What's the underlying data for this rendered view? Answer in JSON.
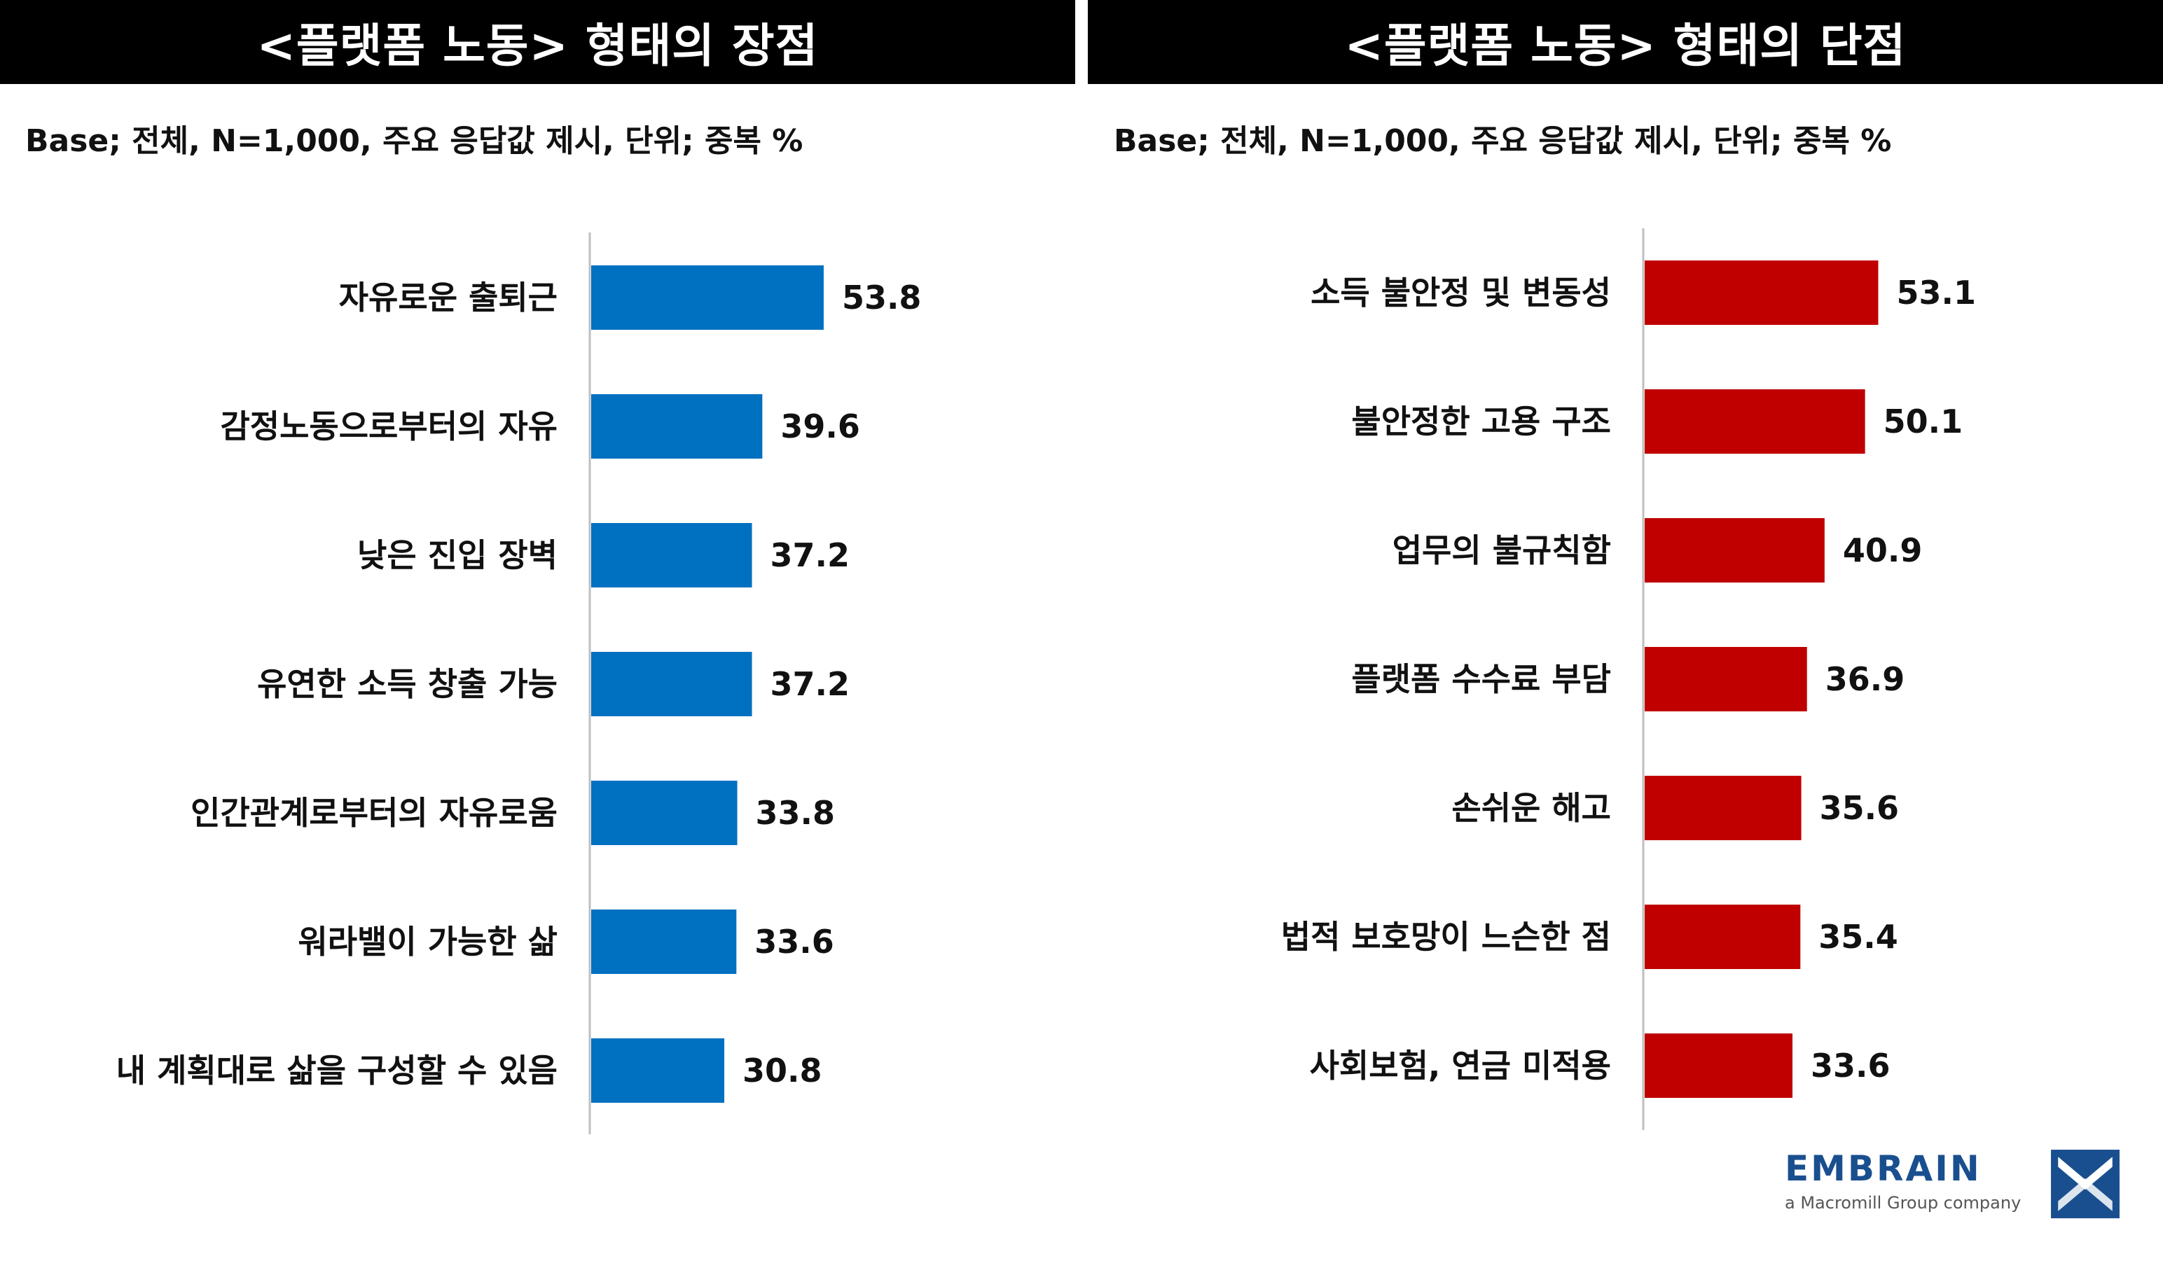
{
  "panels": [
    {
      "header": "<플랫폼 노동> 형태의 장점",
      "base_note": "Base; 전체, N=1,000, 주요 응답값 제시, 단위; 중복 %",
      "color": "#0070C0"
    },
    {
      "header": "<플랫폼 노동> 형태의 단점",
      "base_note": "Base; 전체, N=1,000, 주요 응답값 제시, 단위; 중복 %",
      "color": "#C00000"
    }
  ],
  "chart_data": [
    {
      "type": "bar",
      "orientation": "horizontal",
      "title": "<플랫폼 노동> 형태의 장점",
      "categories": [
        "자유로운 출퇴근",
        "감정노동으로부터의 자유",
        "낮은 진입 장벽",
        "유연한 소득 창출 가능",
        "인간관계로부터의 자유로움",
        "워라밸이 가능한 삶",
        "내 계획대로 삶을 구성할 수 있음"
      ],
      "values": [
        53.8,
        39.6,
        37.2,
        37.2,
        33.8,
        33.6,
        30.8
      ],
      "value_labels": [
        "53.8",
        "39.6",
        "37.2",
        "37.2",
        "33.8",
        "33.6",
        "30.8"
      ],
      "xlim": [
        0,
        100
      ],
      "grid": false,
      "color": "#0070C0"
    },
    {
      "type": "bar",
      "orientation": "horizontal",
      "title": "<플랫폼 노동> 형태의 단점",
      "categories": [
        "소득 불안정 및 변동성",
        "불안정한 고용 구조",
        "업무의 불규칙함",
        "플랫폼 수수료 부담",
        "손쉬운 해고",
        "법적 보호망이 느슨한 점",
        "사회보험, 연금 미적용"
      ],
      "values": [
        53.1,
        50.1,
        40.9,
        36.9,
        35.6,
        35.4,
        33.6
      ],
      "value_labels": [
        "53.1",
        "50.1",
        "40.9",
        "36.9",
        "35.6",
        "35.4",
        "33.6"
      ],
      "xlim": [
        0,
        100
      ],
      "grid": false,
      "color": "#C00000"
    }
  ],
  "logo": {
    "name": "EMBRAIN",
    "tagline": "a Macromill Group company",
    "color": "#1a4f8f"
  }
}
